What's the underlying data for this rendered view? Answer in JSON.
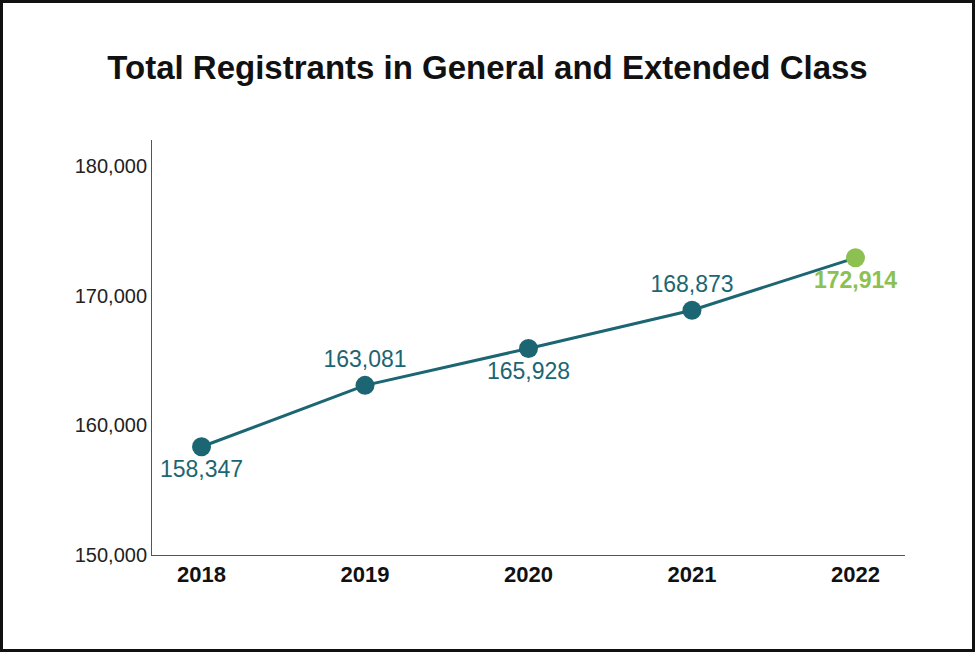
{
  "chart_data": {
    "type": "line",
    "title": "Total Registrants in General and Extended Class",
    "categories": [
      "2018",
      "2019",
      "2020",
      "2021",
      "2022"
    ],
    "values": [
      158347,
      163081,
      165928,
      168873,
      172914
    ],
    "value_labels": [
      "158,347",
      "163,081",
      "165,928",
      "168,873",
      "172,914"
    ],
    "color": "#1b6672",
    "colors": [
      "#1b6672",
      "#1b6672",
      "#1b6672",
      "#1b6672",
      "#8cc152"
    ],
    "marker": "circle",
    "line_style": "solid",
    "ylim": [
      150000,
      182000
    ],
    "yticks": [
      {
        "value": 150000,
        "label": "150,000"
      },
      {
        "value": 160000,
        "label": "160,000"
      },
      {
        "value": 170000,
        "label": "170,000"
      },
      {
        "value": 180000,
        "label": "180,000"
      }
    ],
    "grid": false,
    "data_labels": true
  }
}
